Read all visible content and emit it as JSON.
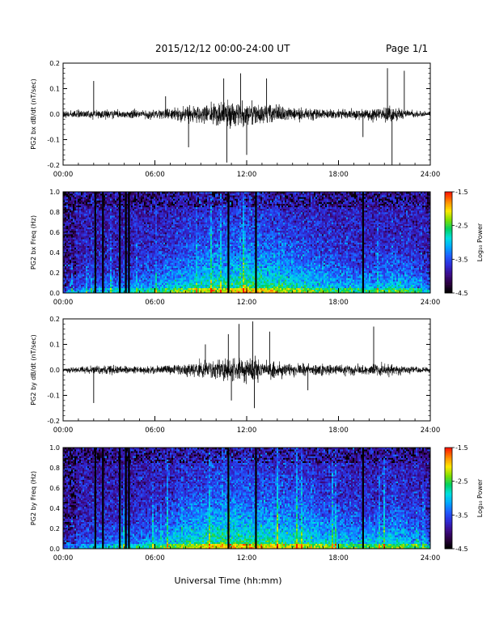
{
  "header": {
    "title": "2015/12/12  00:00-24:00 UT",
    "page": "Page 1/1"
  },
  "footer": {
    "xlabel": "Universal Time (hh:mm)"
  },
  "colors": {
    "trace": "#000000",
    "colormap": [
      "#000000",
      "#2b0040",
      "#3c0b8a",
      "#2d2ad6",
      "#1f5bff",
      "#00a8ff",
      "#00e0e0",
      "#00d060",
      "#7fe000",
      "#ffe800",
      "#ff8c00",
      "#ff1a00"
    ]
  },
  "chart_data": [
    {
      "type": "line",
      "ylabel": "PG2 bx dB/dt (nT/sec)",
      "xlim": [
        0,
        24
      ],
      "ylim": [
        -0.2,
        0.2
      ],
      "xticks": [
        "00:00",
        "06:00",
        "12:00",
        "18:00",
        "24:00"
      ],
      "yticks": [
        "-0.2",
        "-0.1",
        "0.0",
        "0.1",
        "0.2"
      ],
      "envelope_hours": [
        0,
        1,
        2,
        3,
        4,
        5,
        6,
        7,
        8,
        9,
        10,
        11,
        12,
        13,
        14,
        15,
        16,
        17,
        18,
        19,
        20,
        21,
        22,
        23,
        24
      ],
      "envelope": [
        0.02,
        0.025,
        0.03,
        0.03,
        0.025,
        0.03,
        0.035,
        0.04,
        0.05,
        0.06,
        0.07,
        0.09,
        0.08,
        0.065,
        0.06,
        0.05,
        0.04,
        0.035,
        0.03,
        0.03,
        0.04,
        0.05,
        0.04,
        0.02,
        0.015
      ],
      "spikes": [
        {
          "x": 2.0,
          "y": 0.13
        },
        {
          "x": 10.5,
          "y": 0.14
        },
        {
          "x": 10.7,
          "y": -0.19
        },
        {
          "x": 11.6,
          "y": 0.16
        },
        {
          "x": 12.0,
          "y": -0.16
        },
        {
          "x": 13.3,
          "y": 0.14
        },
        {
          "x": 21.2,
          "y": 0.18
        },
        {
          "x": 21.5,
          "y": -0.2
        },
        {
          "x": 22.3,
          "y": 0.17
        },
        {
          "x": 8.2,
          "y": -0.13
        },
        {
          "x": 6.7,
          "y": 0.07
        },
        {
          "x": 19.6,
          "y": -0.09
        }
      ]
    },
    {
      "type": "heatmap",
      "ylabel": "PG2 bx Freq (Hz)",
      "xlim": [
        0,
        24
      ],
      "ylim": [
        0,
        1.0
      ],
      "xticks": [
        "00:00",
        "06:00",
        "12:00",
        "18:00",
        "24:00"
      ],
      "yticks": [
        "0.0",
        "0.2",
        "0.4",
        "0.6",
        "0.8",
        "1.0"
      ],
      "colorbar": {
        "label": "Log₁₀ Power",
        "range": [
          -4.5,
          -1.5
        ],
        "ticks": [
          "-1.5",
          "-2.5",
          "-3.5",
          "-4.5"
        ]
      },
      "dark_bands_hours": [
        2.1,
        2.6,
        3.7,
        4.1,
        4.3,
        10.8,
        12.6,
        19.6
      ],
      "activity_hours": [
        0,
        2,
        4,
        6,
        8,
        10,
        12,
        14,
        16,
        18,
        20,
        22,
        24
      ],
      "activity": [
        0.3,
        0.4,
        0.45,
        0.55,
        0.7,
        0.8,
        0.85,
        0.8,
        0.7,
        0.6,
        0.55,
        0.65,
        0.4
      ]
    },
    {
      "type": "line",
      "ylabel": "PG2 by dB/dt (nT/sec)",
      "xlim": [
        0,
        24
      ],
      "ylim": [
        -0.2,
        0.2
      ],
      "xticks": [
        "00:00",
        "06:00",
        "12:00",
        "18:00",
        "24:00"
      ],
      "yticks": [
        "-0.2",
        "-0.1",
        "0.0",
        "0.1",
        "0.2"
      ],
      "envelope_hours": [
        0,
        1,
        2,
        3,
        4,
        5,
        6,
        7,
        8,
        9,
        10,
        11,
        12,
        13,
        14,
        15,
        16,
        17,
        18,
        19,
        20,
        21,
        22,
        23,
        24
      ],
      "envelope": [
        0.015,
        0.02,
        0.025,
        0.03,
        0.025,
        0.025,
        0.03,
        0.035,
        0.04,
        0.05,
        0.07,
        0.08,
        0.08,
        0.06,
        0.05,
        0.045,
        0.04,
        0.035,
        0.03,
        0.03,
        0.035,
        0.04,
        0.035,
        0.02,
        0.015
      ],
      "spikes": [
        {
          "x": 2.0,
          "y": -0.13
        },
        {
          "x": 10.8,
          "y": 0.14
        },
        {
          "x": 11.0,
          "y": -0.12
        },
        {
          "x": 11.5,
          "y": 0.18
        },
        {
          "x": 12.4,
          "y": 0.19
        },
        {
          "x": 12.5,
          "y": -0.15
        },
        {
          "x": 13.5,
          "y": 0.15
        },
        {
          "x": 20.3,
          "y": 0.17
        },
        {
          "x": 9.3,
          "y": 0.1
        },
        {
          "x": 16.0,
          "y": -0.08
        }
      ]
    },
    {
      "type": "heatmap",
      "ylabel": "PG2 by Freq (Hz)",
      "xlim": [
        0,
        24
      ],
      "ylim": [
        0,
        1.0
      ],
      "xticks": [
        "00:00",
        "06:00",
        "12:00",
        "18:00",
        "24:00"
      ],
      "yticks": [
        "0.0",
        "0.2",
        "0.4",
        "0.6",
        "0.8",
        "1.0"
      ],
      "colorbar": {
        "label": "Log₁₀ Power",
        "range": [
          -4.5,
          -1.5
        ],
        "ticks": [
          "-1.5",
          "-2.5",
          "-3.5",
          "-4.5"
        ]
      },
      "dark_bands_hours": [
        2.1,
        2.6,
        3.7,
        4.1,
        4.3,
        10.8,
        12.6,
        19.6
      ],
      "activity_hours": [
        0,
        2,
        4,
        6,
        8,
        10,
        12,
        14,
        16,
        18,
        20,
        22,
        24
      ],
      "activity": [
        0.3,
        0.4,
        0.45,
        0.55,
        0.75,
        0.85,
        0.85,
        0.8,
        0.75,
        0.65,
        0.6,
        0.7,
        0.45
      ]
    }
  ]
}
